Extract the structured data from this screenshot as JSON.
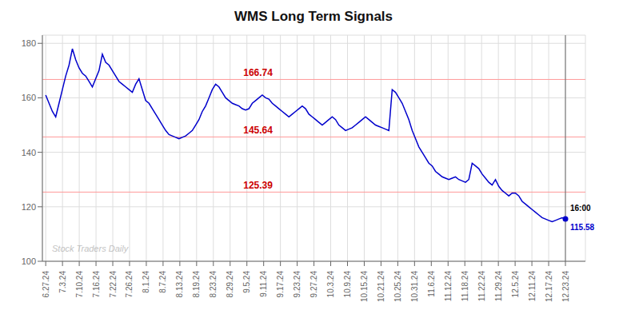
{
  "chart_data": {
    "type": "line",
    "title": "WMS Long Term Signals",
    "color": "#0000cc",
    "grid": true,
    "x": [
      0,
      1,
      2,
      3,
      4,
      5,
      6,
      7,
      8,
      9,
      10,
      11,
      12,
      13,
      14,
      15,
      16,
      17,
      18,
      19,
      20,
      21,
      22,
      23,
      24,
      25,
      26,
      27,
      28,
      29,
      30,
      31,
      32,
      33,
      34,
      35,
      36,
      37,
      38,
      39,
      40,
      41,
      42,
      43,
      44,
      45,
      46,
      47,
      48,
      49,
      50,
      51,
      52,
      53,
      54,
      55,
      56,
      57,
      58,
      59,
      60,
      61,
      62,
      63,
      64,
      65,
      66,
      67,
      68,
      69,
      70,
      71,
      72,
      73,
      74,
      75,
      76,
      77,
      78,
      79,
      80,
      81,
      82,
      83,
      84,
      85,
      86,
      87,
      88,
      89,
      90,
      91,
      92,
      93,
      94,
      95,
      96,
      97,
      98,
      99,
      100,
      101,
      102,
      103,
      104,
      105,
      106,
      107,
      108,
      109,
      110,
      111,
      112,
      113,
      114,
      115,
      116,
      117,
      118,
      119,
      120,
      121,
      122,
      123,
      124,
      125,
      126,
      127,
      128,
      129,
      130,
      131,
      132,
      133,
      134,
      135,
      136,
      137,
      138,
      139,
      140,
      141,
      142,
      143,
      144,
      145,
      146,
      147,
      148,
      149,
      150,
      151,
      152,
      153,
      154,
      155,
      156
    ],
    "values": [
      161.0,
      158.0,
      155.0,
      153.0,
      158.0,
      163.0,
      168.0,
      172.0,
      178.0,
      174.0,
      171.0,
      169.0,
      168.0,
      166.0,
      164.0,
      167.0,
      170.0,
      176.0,
      173.0,
      172.0,
      170.0,
      168.0,
      166.0,
      165.0,
      164.0,
      163.0,
      162.0,
      165.0,
      167.0,
      163.0,
      159.0,
      158.0,
      156.0,
      154.0,
      152.0,
      150.0,
      148.0,
      146.5,
      146.0,
      145.5,
      145.0,
      145.5,
      146.0,
      147.0,
      148.0,
      150.0,
      152.0,
      155.0,
      157.0,
      160.0,
      163.0,
      165.0,
      164.0,
      162.0,
      160.0,
      159.0,
      158.0,
      157.5,
      157.0,
      156.0,
      155.5,
      156.0,
      158.0,
      159.0,
      160.0,
      161.0,
      160.0,
      159.5,
      158.0,
      157.0,
      156.0,
      155.0,
      154.0,
      153.0,
      154.0,
      155.0,
      156.0,
      157.0,
      156.0,
      154.0,
      153.0,
      152.0,
      151.0,
      150.0,
      151.0,
      152.0,
      153.0,
      152.0,
      150.0,
      149.0,
      148.0,
      148.5,
      149.0,
      150.0,
      151.0,
      152.0,
      153.0,
      152.0,
      151.0,
      150.0,
      149.5,
      149.0,
      148.5,
      148.0,
      163.0,
      162.0,
      160.0,
      158.0,
      155.0,
      152.0,
      148.0,
      145.0,
      142.0,
      140.0,
      138.0,
      136.0,
      135.0,
      133.0,
      132.0,
      131.0,
      130.5,
      130.0,
      130.5,
      131.0,
      130.0,
      129.5,
      129.0,
      130.0,
      136.0,
      135.0,
      134.0,
      132.0,
      130.5,
      129.0,
      128.0,
      130.0,
      127.5,
      126.0,
      125.0,
      124.0,
      125.0,
      125.0,
      124.0,
      122.0,
      121.0,
      120.0,
      119.0,
      118.0,
      117.0,
      116.0,
      115.5,
      115.0,
      114.5,
      115.0,
      115.5,
      116.0,
      115.58
    ],
    "xlim": [
      -1,
      162
    ],
    "xticks": [
      {
        "value": 0,
        "label": "6.27.24"
      },
      {
        "value": 5.032258064516129,
        "label": "7.3.24"
      },
      {
        "value": 10.064516129032258,
        "label": "7.10.24"
      },
      {
        "value": 15.096774193548388,
        "label": "7.16.24"
      },
      {
        "value": 20.129032258064516,
        "label": "7.22.24"
      },
      {
        "value": 25.161290322580644,
        "label": "7.26.24"
      },
      {
        "value": 30.193548387096776,
        "label": "8.1.24"
      },
      {
        "value": 35.225806451612904,
        "label": "8.7.24"
      },
      {
        "value": 40.25806451612903,
        "label": "8.13.24"
      },
      {
        "value": 45.29032258064516,
        "label": "8.19.24"
      },
      {
        "value": 50.32258064516129,
        "label": "8.23.24"
      },
      {
        "value": 55.354838709677416,
        "label": "8.29.24"
      },
      {
        "value": 60.38709677419355,
        "label": "9.5.24"
      },
      {
        "value": 65.41935483870968,
        "label": "9.11.24"
      },
      {
        "value": 70.45161290322581,
        "label": "9.17.24"
      },
      {
        "value": 75.48387096774194,
        "label": "9.23.24"
      },
      {
        "value": 80.51612903225806,
        "label": "9.27.24"
      },
      {
        "value": 85.54838709677419,
        "label": "10.3.24"
      },
      {
        "value": 90.58064516129032,
        "label": "10.9.24"
      },
      {
        "value": 95.61290322580645,
        "label": "10.15.24"
      },
      {
        "value": 100.64516129032258,
        "label": "10.21.24"
      },
      {
        "value": 105.6774193548387,
        "label": "10.25.24"
      },
      {
        "value": 110.70967741935483,
        "label": "10.31.24"
      },
      {
        "value": 115.74193548387096,
        "label": "11.6.24"
      },
      {
        "value": 120.7741935483871,
        "label": "11.12.24"
      },
      {
        "value": 125.80645161290323,
        "label": "11.18.24"
      },
      {
        "value": 130.83870967741936,
        "label": "11.22.24"
      },
      {
        "value": 135.8709677419355,
        "label": "11.29.24"
      },
      {
        "value": 140.90322580645162,
        "label": "12.5.24"
      },
      {
        "value": 145.93548387096774,
        "label": "12.11.24"
      },
      {
        "value": 150.96774193548387,
        "label": "12.17.24"
      },
      {
        "value": 156,
        "label": "12.23.24"
      }
    ],
    "ylim": [
      100,
      183
    ],
    "yticks": [
      100,
      120,
      140,
      160,
      180
    ],
    "hlines": [
      {
        "value": 166.74,
        "label": "166.74",
        "color": "#ff9999",
        "label_color": "#cc0000"
      },
      {
        "value": 145.64,
        "label": "145.64",
        "color": "#ff9999",
        "label_color": "#cc0000"
      },
      {
        "value": 125.39,
        "label": "125.39",
        "color": "#ff9999",
        "label_color": "#cc0000"
      }
    ],
    "last_point": {
      "x": 156,
      "y": 115.58,
      "label": "115.58",
      "time": "16:00"
    },
    "watermark": "Stock Traders Daily"
  }
}
